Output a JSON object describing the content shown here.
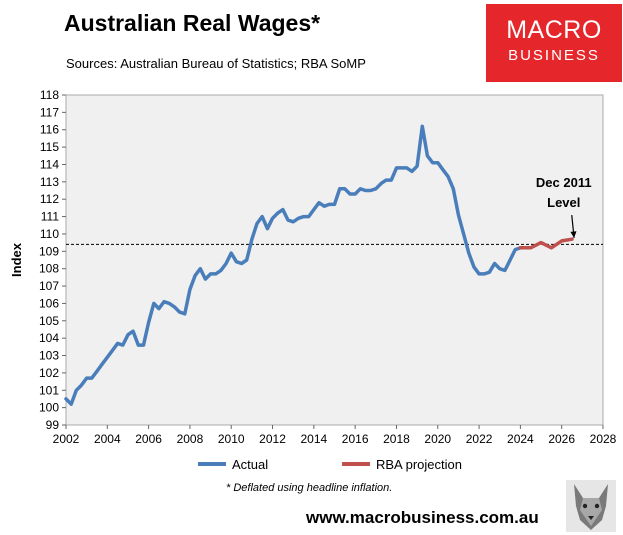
{
  "title": "Australian Real Wages*",
  "source": "Sources: Australian Bureau of Statistics; RBA SoMP",
  "logo": {
    "line1": "MACRO",
    "line2": "BUSINESS",
    "color": "#e5262a"
  },
  "footnote": "* Deflated using headline inflation.",
  "website": "www.macrobusiness.com.au",
  "icons": {
    "mascot": "wolf-icon"
  },
  "chart_data": {
    "type": "line",
    "ylabel": "Index",
    "xlim": [
      2002,
      2028
    ],
    "ylim": [
      99,
      118
    ],
    "x_ticks": [
      2002,
      2004,
      2006,
      2008,
      2010,
      2012,
      2014,
      2016,
      2018,
      2020,
      2022,
      2024,
      2026,
      2028
    ],
    "y_ticks": [
      99,
      100,
      101,
      102,
      103,
      104,
      105,
      106,
      107,
      108,
      109,
      110,
      111,
      112,
      113,
      114,
      115,
      116,
      117,
      118
    ],
    "reference_line": {
      "y": 109.4,
      "style": "dashed",
      "color": "#000000"
    },
    "annotation": {
      "line1": "Dec 2011",
      "line2": "Level",
      "x": 2026.1,
      "y": 112.7,
      "arrow_to": [
        2026.6,
        109.6
      ]
    },
    "legend_position": "bottom",
    "series": [
      {
        "name": "Actual",
        "color": "#4a7ebb",
        "x": [
          2002.0,
          2002.25,
          2002.5,
          2002.75,
          2003.0,
          2003.25,
          2003.5,
          2003.75,
          2004.0,
          2004.25,
          2004.5,
          2004.75,
          2005.0,
          2005.25,
          2005.5,
          2005.75,
          2006.0,
          2006.25,
          2006.5,
          2006.75,
          2007.0,
          2007.25,
          2007.5,
          2007.75,
          2008.0,
          2008.25,
          2008.5,
          2008.75,
          2009.0,
          2009.25,
          2009.5,
          2009.75,
          2010.0,
          2010.25,
          2010.5,
          2010.75,
          2011.0,
          2011.25,
          2011.5,
          2011.75,
          2012.0,
          2012.25,
          2012.5,
          2012.75,
          2013.0,
          2013.25,
          2013.5,
          2013.75,
          2014.0,
          2014.25,
          2014.5,
          2014.75,
          2015.0,
          2015.25,
          2015.5,
          2015.75,
          2016.0,
          2016.25,
          2016.5,
          2016.75,
          2017.0,
          2017.25,
          2017.5,
          2017.75,
          2018.0,
          2018.25,
          2018.5,
          2018.75,
          2019.0,
          2019.25,
          2019.5,
          2019.75,
          2020.0,
          2020.25,
          2020.5,
          2020.75,
          2021.0,
          2021.25,
          2021.5,
          2021.75,
          2022.0,
          2022.25,
          2022.5,
          2022.75,
          2023.0,
          2023.25,
          2023.5,
          2023.75,
          2024.0
        ],
        "values": [
          100.5,
          100.2,
          101.0,
          101.3,
          101.7,
          101.7,
          102.1,
          102.5,
          102.9,
          103.3,
          103.7,
          103.6,
          104.2,
          104.4,
          103.6,
          103.6,
          104.9,
          106.0,
          105.7,
          106.1,
          106.0,
          105.8,
          105.5,
          105.4,
          106.8,
          107.6,
          108.0,
          107.4,
          107.7,
          107.7,
          107.9,
          108.3,
          108.9,
          108.4,
          108.3,
          108.5,
          109.7,
          110.6,
          111.0,
          110.3,
          110.9,
          111.2,
          111.4,
          110.8,
          110.7,
          110.9,
          111.0,
          111.0,
          111.4,
          111.8,
          111.6,
          111.7,
          111.7,
          112.6,
          112.6,
          112.3,
          112.3,
          112.6,
          112.5,
          112.5,
          112.6,
          112.9,
          113.1,
          113.1,
          113.8,
          113.8,
          113.8,
          113.6,
          113.9,
          116.2,
          114.5,
          114.1,
          114.1,
          113.7,
          113.3,
          112.6,
          111.1,
          110.0,
          108.9,
          108.1,
          107.7,
          107.7,
          107.8,
          108.3,
          108.0,
          107.9,
          108.5,
          109.1,
          109.2
        ]
      },
      {
        "name": "RBA projection",
        "color": "#c0504d",
        "x": [
          2024.0,
          2024.5,
          2025.0,
          2025.5,
          2026.0,
          2026.5
        ],
        "values": [
          109.2,
          109.2,
          109.5,
          109.2,
          109.6,
          109.7
        ]
      }
    ]
  }
}
